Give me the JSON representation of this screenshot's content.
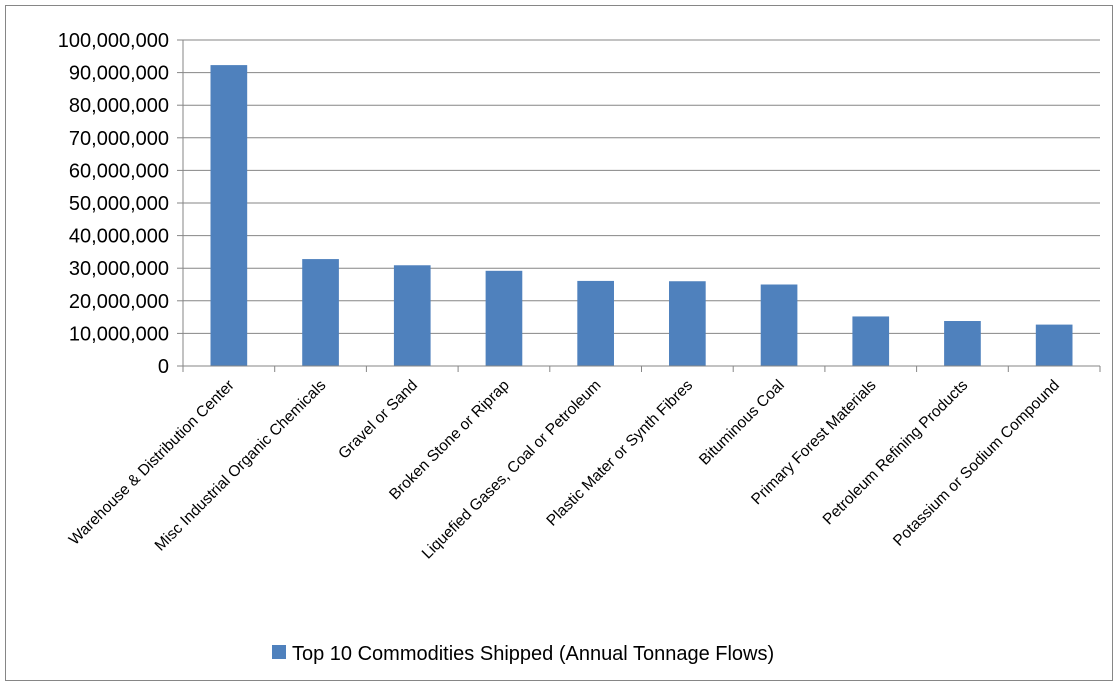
{
  "chart_data": {
    "type": "bar",
    "title": "",
    "xlabel": "",
    "ylabel": "",
    "ylim": [
      0,
      100000000
    ],
    "ytick_step": 10000000,
    "grid": true,
    "legend_position": "bottom",
    "categories": [
      "Warehouse & Distribution Center",
      "Misc Industrial Organic Chemicals",
      "Gravel or Sand",
      "Broken Stone or Riprap",
      "Liquefied Gases, Coal or Petroleum",
      "Plastic Mater or Synth Fibres",
      "Bituminous Coal",
      "Primary Forest Materials",
      "Petroleum Refining Products",
      "Potassium or Sodium Compound"
    ],
    "series": [
      {
        "name": "Top 10 Commodities Shipped (Annual Tonnage Flows)",
        "color": "#4F81BD",
        "values": [
          92300000,
          32800000,
          30900000,
          29200000,
          26100000,
          26000000,
          25000000,
          15200000,
          13800000,
          12700000
        ]
      }
    ]
  }
}
